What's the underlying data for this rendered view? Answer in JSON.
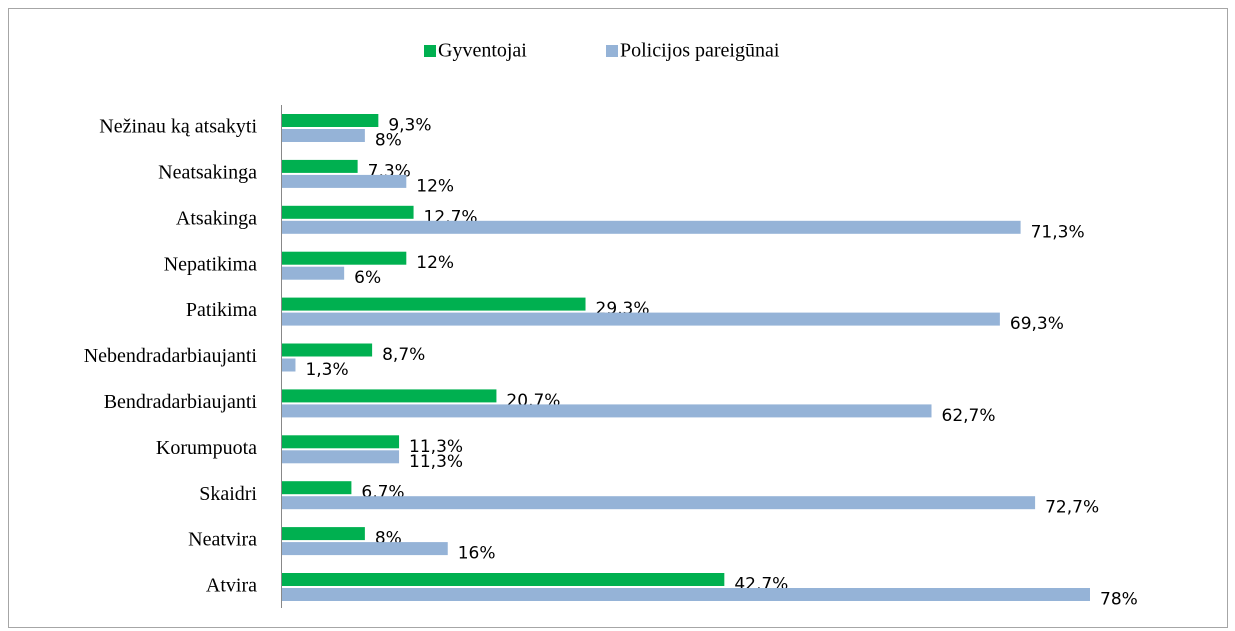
{
  "chart_data": {
    "type": "bar",
    "orientation": "horizontal",
    "categories": [
      "Nežinau ką atsakyti",
      "Neatsakinga",
      "Atsakinga",
      "Nepatikima",
      "Patikima",
      "Nebendradarbiaujanti",
      "Bendradarbiaujanti",
      "Korumpuota",
      "Skaidri",
      "Neatvira",
      "Atvira"
    ],
    "series": [
      {
        "name": "Gyventojai",
        "color": "#00b050",
        "values": [
          9.3,
          7.3,
          12.7,
          12,
          29.3,
          8.7,
          20.7,
          11.3,
          6.7,
          8,
          42.7
        ],
        "value_labels": [
          "9,3%",
          "7,3%",
          "12,7%",
          "12%",
          "29,3%",
          "8,7%",
          "20,7%",
          "11,3%",
          "6,7%",
          "8%",
          "42,7%"
        ]
      },
      {
        "name": "Policijos pareigūnai",
        "color": "#95b3d7",
        "values": [
          8,
          12,
          71.3,
          6,
          69.3,
          1.3,
          62.7,
          11.3,
          72.7,
          16,
          78
        ],
        "value_labels": [
          "8%",
          "12%",
          "71,3%",
          "6%",
          "69,3%",
          "1,3%",
          "62,7%",
          "11,3%",
          "72,7%",
          "16%",
          "78%"
        ]
      }
    ],
    "legend": "top"
  }
}
